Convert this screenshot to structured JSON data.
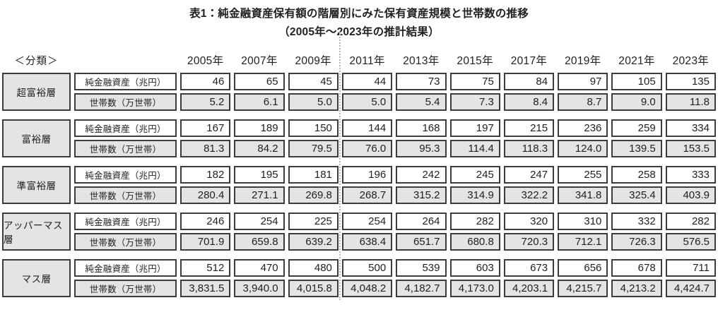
{
  "title": "表1：純金融資産保有額の階層別にみた保有資産規模と世帯数の推移",
  "subtitle": "（2005年～2023年の推計結果）",
  "classification_label": "＜分類＞",
  "years": [
    "2005年",
    "2007年",
    "2009年",
    "2011年",
    "2013年",
    "2015年",
    "2017年",
    "2019年",
    "2021年",
    "2023年"
  ],
  "metric_labels": {
    "assets": "純金融資産（兆円）",
    "households": "世帯数（万世帯）"
  },
  "groups": [
    {
      "name": "超富裕層",
      "assets": [
        "46",
        "65",
        "45",
        "44",
        "73",
        "75",
        "84",
        "97",
        "105",
        "135"
      ],
      "households": [
        "5.2",
        "6.1",
        "5.0",
        "5.0",
        "5.4",
        "7.3",
        "8.4",
        "8.7",
        "9.0",
        "11.8"
      ]
    },
    {
      "name": "富裕層",
      "assets": [
        "167",
        "189",
        "150",
        "144",
        "168",
        "197",
        "215",
        "236",
        "259",
        "334"
      ],
      "households": [
        "81.3",
        "84.2",
        "79.5",
        "76.0",
        "95.3",
        "114.4",
        "118.3",
        "124.0",
        "139.5",
        "153.5"
      ]
    },
    {
      "name": "準富裕層",
      "assets": [
        "182",
        "195",
        "181",
        "196",
        "242",
        "245",
        "247",
        "255",
        "258",
        "333"
      ],
      "households": [
        "280.4",
        "271.1",
        "269.8",
        "268.7",
        "315.2",
        "314.9",
        "322.2",
        "341.8",
        "325.4",
        "403.9"
      ]
    },
    {
      "name": "アッパーマス層",
      "assets": [
        "246",
        "254",
        "225",
        "254",
        "264",
        "282",
        "320",
        "310",
        "332",
        "282"
      ],
      "households": [
        "701.9",
        "659.8",
        "639.2",
        "638.4",
        "651.7",
        "680.8",
        "720.3",
        "712.1",
        "726.3",
        "576.5"
      ]
    },
    {
      "name": "マス層",
      "assets": [
        "512",
        "470",
        "480",
        "500",
        "539",
        "603",
        "673",
        "656",
        "678",
        "711"
      ],
      "households": [
        "3,831.5",
        "3,940.0",
        "4,015.8",
        "4,048.2",
        "4,182.7",
        "4,173.0",
        "4,203.1",
        "4,215.7",
        "4,213.2",
        "4,424.7"
      ]
    }
  ],
  "colors": {
    "cell_border": "#3c3c3c",
    "gray_fill": "#e4e4e4",
    "divider_dotted": "#b9b9b9",
    "text": "#1f1f1f"
  },
  "chart_data": {
    "type": "table",
    "title": "表1：純金融資産保有額の階層別にみた保有資産規模と世帯数の推移（2005年～2023年の推計結果）",
    "columns": [
      "2005年",
      "2007年",
      "2009年",
      "2011年",
      "2013年",
      "2015年",
      "2017年",
      "2019年",
      "2021年",
      "2023年"
    ],
    "rows": [
      {
        "tier": "超富裕層",
        "metric": "純金融資産（兆円）",
        "values": [
          46,
          65,
          45,
          44,
          73,
          75,
          84,
          97,
          105,
          135
        ]
      },
      {
        "tier": "超富裕層",
        "metric": "世帯数（万世帯）",
        "values": [
          5.2,
          6.1,
          5.0,
          5.0,
          5.4,
          7.3,
          8.4,
          8.7,
          9.0,
          11.8
        ]
      },
      {
        "tier": "富裕層",
        "metric": "純金融資産（兆円）",
        "values": [
          167,
          189,
          150,
          144,
          168,
          197,
          215,
          236,
          259,
          334
        ]
      },
      {
        "tier": "富裕層",
        "metric": "世帯数（万世帯）",
        "values": [
          81.3,
          84.2,
          79.5,
          76.0,
          95.3,
          114.4,
          118.3,
          124.0,
          139.5,
          153.5
        ]
      },
      {
        "tier": "準富裕層",
        "metric": "純金融資産（兆円）",
        "values": [
          182,
          195,
          181,
          196,
          242,
          245,
          247,
          255,
          258,
          333
        ]
      },
      {
        "tier": "準富裕層",
        "metric": "世帯数（万世帯）",
        "values": [
          280.4,
          271.1,
          269.8,
          268.7,
          315.2,
          314.9,
          322.2,
          341.8,
          325.4,
          403.9
        ]
      },
      {
        "tier": "アッパーマス層",
        "metric": "純金融資産（兆円）",
        "values": [
          246,
          254,
          225,
          254,
          264,
          282,
          320,
          310,
          332,
          282
        ]
      },
      {
        "tier": "アッパーマス層",
        "metric": "世帯数（万世帯）",
        "values": [
          701.9,
          659.8,
          639.2,
          638.4,
          651.7,
          680.8,
          720.3,
          712.1,
          726.3,
          576.5
        ]
      },
      {
        "tier": "マス層",
        "metric": "純金融資産（兆円）",
        "values": [
          512,
          470,
          480,
          500,
          539,
          603,
          673,
          656,
          678,
          711
        ]
      },
      {
        "tier": "マス層",
        "metric": "世帯数（万世帯）",
        "values": [
          3831.5,
          3940.0,
          4015.8,
          4048.2,
          4182.7,
          4173.0,
          4203.1,
          4215.7,
          4213.2,
          4424.7
        ]
      }
    ]
  }
}
